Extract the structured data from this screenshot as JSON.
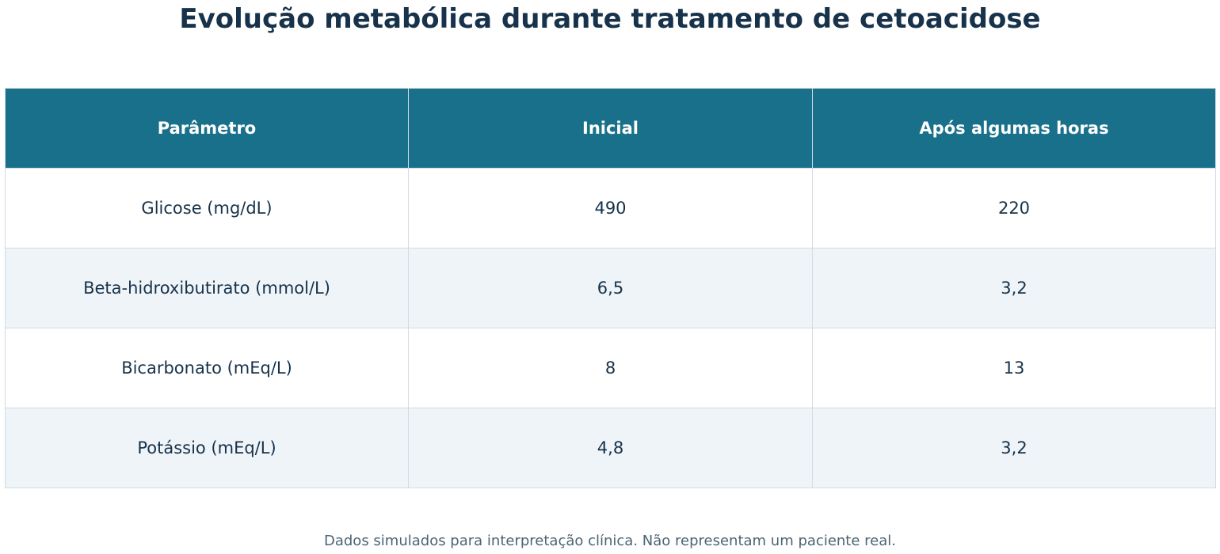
{
  "chart_data": {
    "type": "table",
    "title": "Evolução metabólica durante tratamento de cetoacidose",
    "columns": [
      "Parâmetro",
      "Inicial",
      "Após algumas horas"
    ],
    "rows": [
      [
        "Glicose (mg/dL)",
        "490",
        "220"
      ],
      [
        "Beta-hidroxibutirato (mmol/L)",
        "6,5",
        "3,2"
      ],
      [
        "Bicarbonato (mEq/L)",
        "8",
        "13"
      ],
      [
        "Potássio (mEq/L)",
        "4,8",
        "3,2"
      ]
    ],
    "footnote": "Dados simulados para interpretação clínica. Não representam um paciente real."
  },
  "colors": {
    "header_background": "#19708a",
    "header_text": "#ffffff",
    "title_text": "#17324a",
    "row_alt_background": "#eef4f8",
    "grid_lines": "#cfdce6",
    "footnote_text": "#4d6475"
  }
}
